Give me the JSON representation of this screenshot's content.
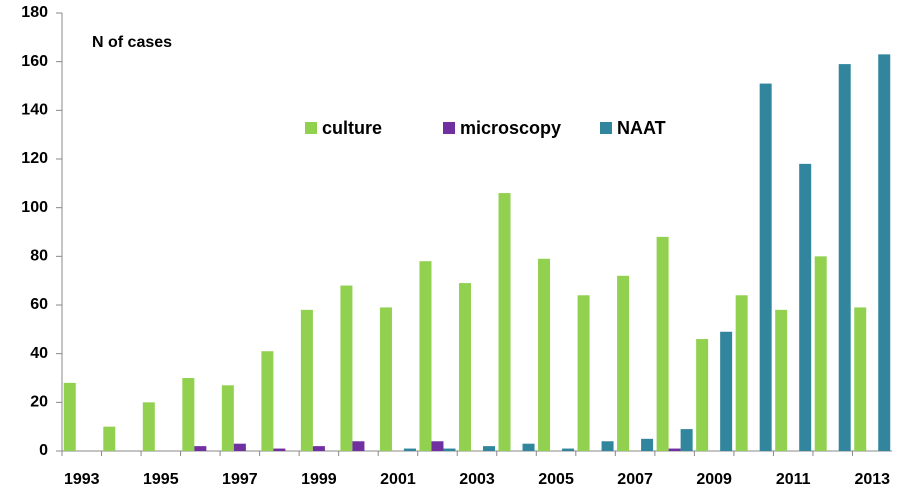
{
  "chart_data": {
    "type": "bar",
    "y_label": "N of cases",
    "categories": [
      "1993",
      null,
      "1995",
      null,
      "1997",
      null,
      "1999",
      null,
      "2001",
      null,
      "2003",
      null,
      "2005",
      null,
      "2007",
      null,
      "2009",
      null,
      "2011",
      null,
      "2013"
    ],
    "series": [
      {
        "name": "culture",
        "color": "#92d050",
        "values": [
          28,
          10,
          20,
          30,
          27,
          41,
          58,
          68,
          59,
          78,
          69,
          106,
          79,
          64,
          72,
          88,
          46,
          64,
          58,
          80,
          59
        ]
      },
      {
        "name": "microscopy",
        "color": "#7030a0",
        "values": [
          0,
          0,
          0,
          2,
          3,
          1,
          2,
          4,
          0,
          4,
          0,
          0,
          0,
          0,
          0,
          1,
          0,
          0,
          0,
          0,
          0
        ]
      },
      {
        "name": "NAAT",
        "color": "#31859c",
        "values": [
          0,
          0,
          0,
          0,
          0,
          0,
          0,
          0,
          1,
          1,
          2,
          3,
          1,
          4,
          5,
          9,
          49,
          151,
          118,
          159,
          163
        ]
      }
    ],
    "ylim": [
      0,
      180
    ],
    "yticks": [
      0,
      20,
      40,
      60,
      80,
      100,
      120,
      140,
      160,
      180
    ],
    "grid": false,
    "legend": "top"
  }
}
